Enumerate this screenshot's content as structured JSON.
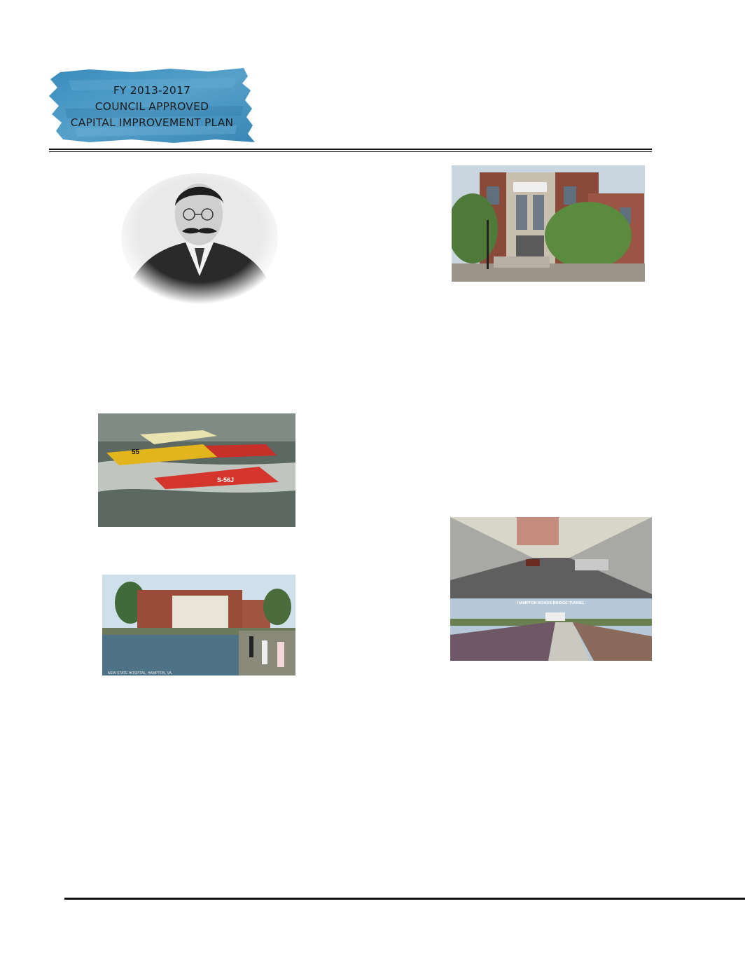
{
  "header": {
    "banner_line1": "FY 2013-2017",
    "banner_line2": "COUNCIL APPROVED",
    "banner_line3": "CAPITAL IMPROVEMENT PLAN",
    "banner_color": "#3f8fbf"
  },
  "images": {
    "portrait": "portrait-engraving-image",
    "building": "brick-building-image",
    "boats": "hydroplane-race-image",
    "hospital": "hospital-postcard-image",
    "tunnel": "bridge-tunnel-image"
  },
  "postcards": {
    "hospital_caption": "NEW STATE HOSPITAL, HAMPTON, VA.",
    "tunnel_caption": "HAMPTON ROADS BRIDGE-TUNNEL"
  },
  "boat_numbers": {
    "yellow": "55",
    "red": "S-56J"
  }
}
